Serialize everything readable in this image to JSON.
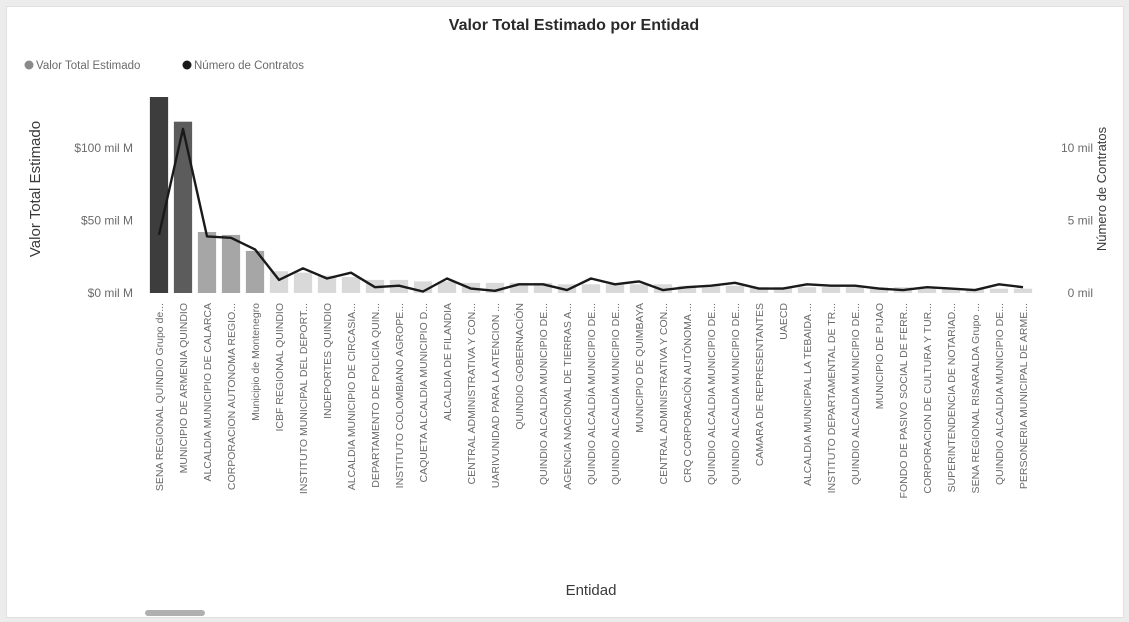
{
  "chart_data": {
    "type": "bar",
    "title": "Valor Total Estimado por Entidad",
    "xlabel": "Entidad",
    "ylabel": "Valor Total Estimado",
    "y2label": "Número de Contratos",
    "legend": {
      "placement": "top-left",
      "items": [
        "Valor Total Estimado",
        "Número de Contratos"
      ]
    },
    "ylim": [
      0,
      135
    ],
    "y2lim": [
      0,
      13500
    ],
    "yticks": [
      {
        "value": 0,
        "label": "$0 mil M"
      },
      {
        "value": 50,
        "label": "$50 mil M"
      },
      {
        "value": 100,
        "label": "$100 mil M"
      }
    ],
    "y2ticks": [
      {
        "value": 0,
        "label": "0 mil"
      },
      {
        "value": 5000,
        "label": "5 mil"
      },
      {
        "value": 10000,
        "label": "10 mil"
      }
    ],
    "grid": false,
    "categories": [
      "SENA REGIONAL QUINDIO Grupo de...",
      "MUNICIPIO DE ARMENIA QUINDIO",
      "ALCALDIA MUNICIPIO DE CALARCA",
      "CORPORACION AUTONOMA REGIO...",
      "Municipio de Montenegro",
      "ICBF REGIONAL QUINDIO",
      "INSTITUTO MUNICIPAL DEL DEPORT...",
      "INDEPORTES QUINDIO",
      "ALCALDIA MUNICIPIO DE CIRCASIA...",
      "DEPARTAMENTO DE POLICIA QUIN...",
      "INSTITUTO COLOMBIANO AGROPE...",
      "CAQUETA ALCALDIA MUNICIPIO D...",
      "ALCALDIA DE FILANDIA",
      "CENTRAL ADMINISTRATIVA Y CON...",
      "UARIVUNIDAD PARA LA ATENCION ...",
      "QUINDIO GOBERNACIÓN",
      "QUINDIO ALCALDIA MUNICIPIO DE...",
      "AGENCIA NACIONAL DE TIERRAS A...",
      "QUINDIO ALCALDÍA MUNICIPIO DE...",
      "QUINDIO ALCALDÍA MUNICIPIO DE...",
      "MUNICIPIO DE QUIMBAYA",
      "CENTRAL ADMINISTRATIVA Y CON...",
      "CRQ CORPORACIÓN AUTÓNOMA ...",
      "QUINDIO ALCALDIA MUNICIPIO DE...",
      "QUINDIO ALCALDIA MUNICIPIO DE...",
      "CAMARA DE REPRESENTANTES",
      "UAECD",
      "ALCALDIA MUNICIPAL LA TEBAIDA ...",
      "INSTITUTO DEPARTAMENTAL DE TR...",
      "QUINDIO ALCALDIA MUNICIPIO DE...",
      "MUNICIPIO DE PIJAO",
      "FONDO DE PASIVO SOCIAL DE FERR...",
      "CORPORACION DE CULTURA Y TUR...",
      "SUPERINTENDENCIA DE NOTARIAD...",
      "SENA REGIONAL RISARALDA Grupo ...",
      "QUINDIO ALCALDIA MUNICIPIO DE...",
      "PERSONERIA MUNICIPAL DE ARME..."
    ],
    "series": [
      {
        "name": "Valor Total Estimado",
        "axis": "left",
        "unit": "mil M",
        "values": [
          135,
          118,
          42,
          40,
          29,
          15,
          14,
          12,
          11,
          9,
          9,
          8,
          8,
          7,
          7,
          7,
          7,
          6,
          6,
          6,
          6,
          6,
          5,
          5,
          5,
          4,
          4,
          4,
          4,
          4,
          4,
          4,
          3,
          3,
          3,
          3,
          3
        ]
      },
      {
        "name": "Número de Contratos",
        "axis": "right",
        "type": "line",
        "values": [
          4000,
          11300,
          3900,
          3800,
          3000,
          900,
          1700,
          1000,
          1400,
          400,
          500,
          100,
          1000,
          300,
          150,
          600,
          600,
          200,
          1000,
          600,
          800,
          200,
          400,
          500,
          700,
          300,
          300,
          600,
          500,
          500,
          300,
          200,
          400,
          300,
          200,
          600,
          400
        ]
      }
    ],
    "colors": {
      "bar_top": "#3d3d3d",
      "bar_second": "#5c5c5c",
      "bar_mid": "#a6a6a6",
      "bar_low": "#d9d9d9",
      "line": "#1a1a1a",
      "text": "#3a3a3a",
      "axis_text": "#6b6b6b"
    }
  }
}
